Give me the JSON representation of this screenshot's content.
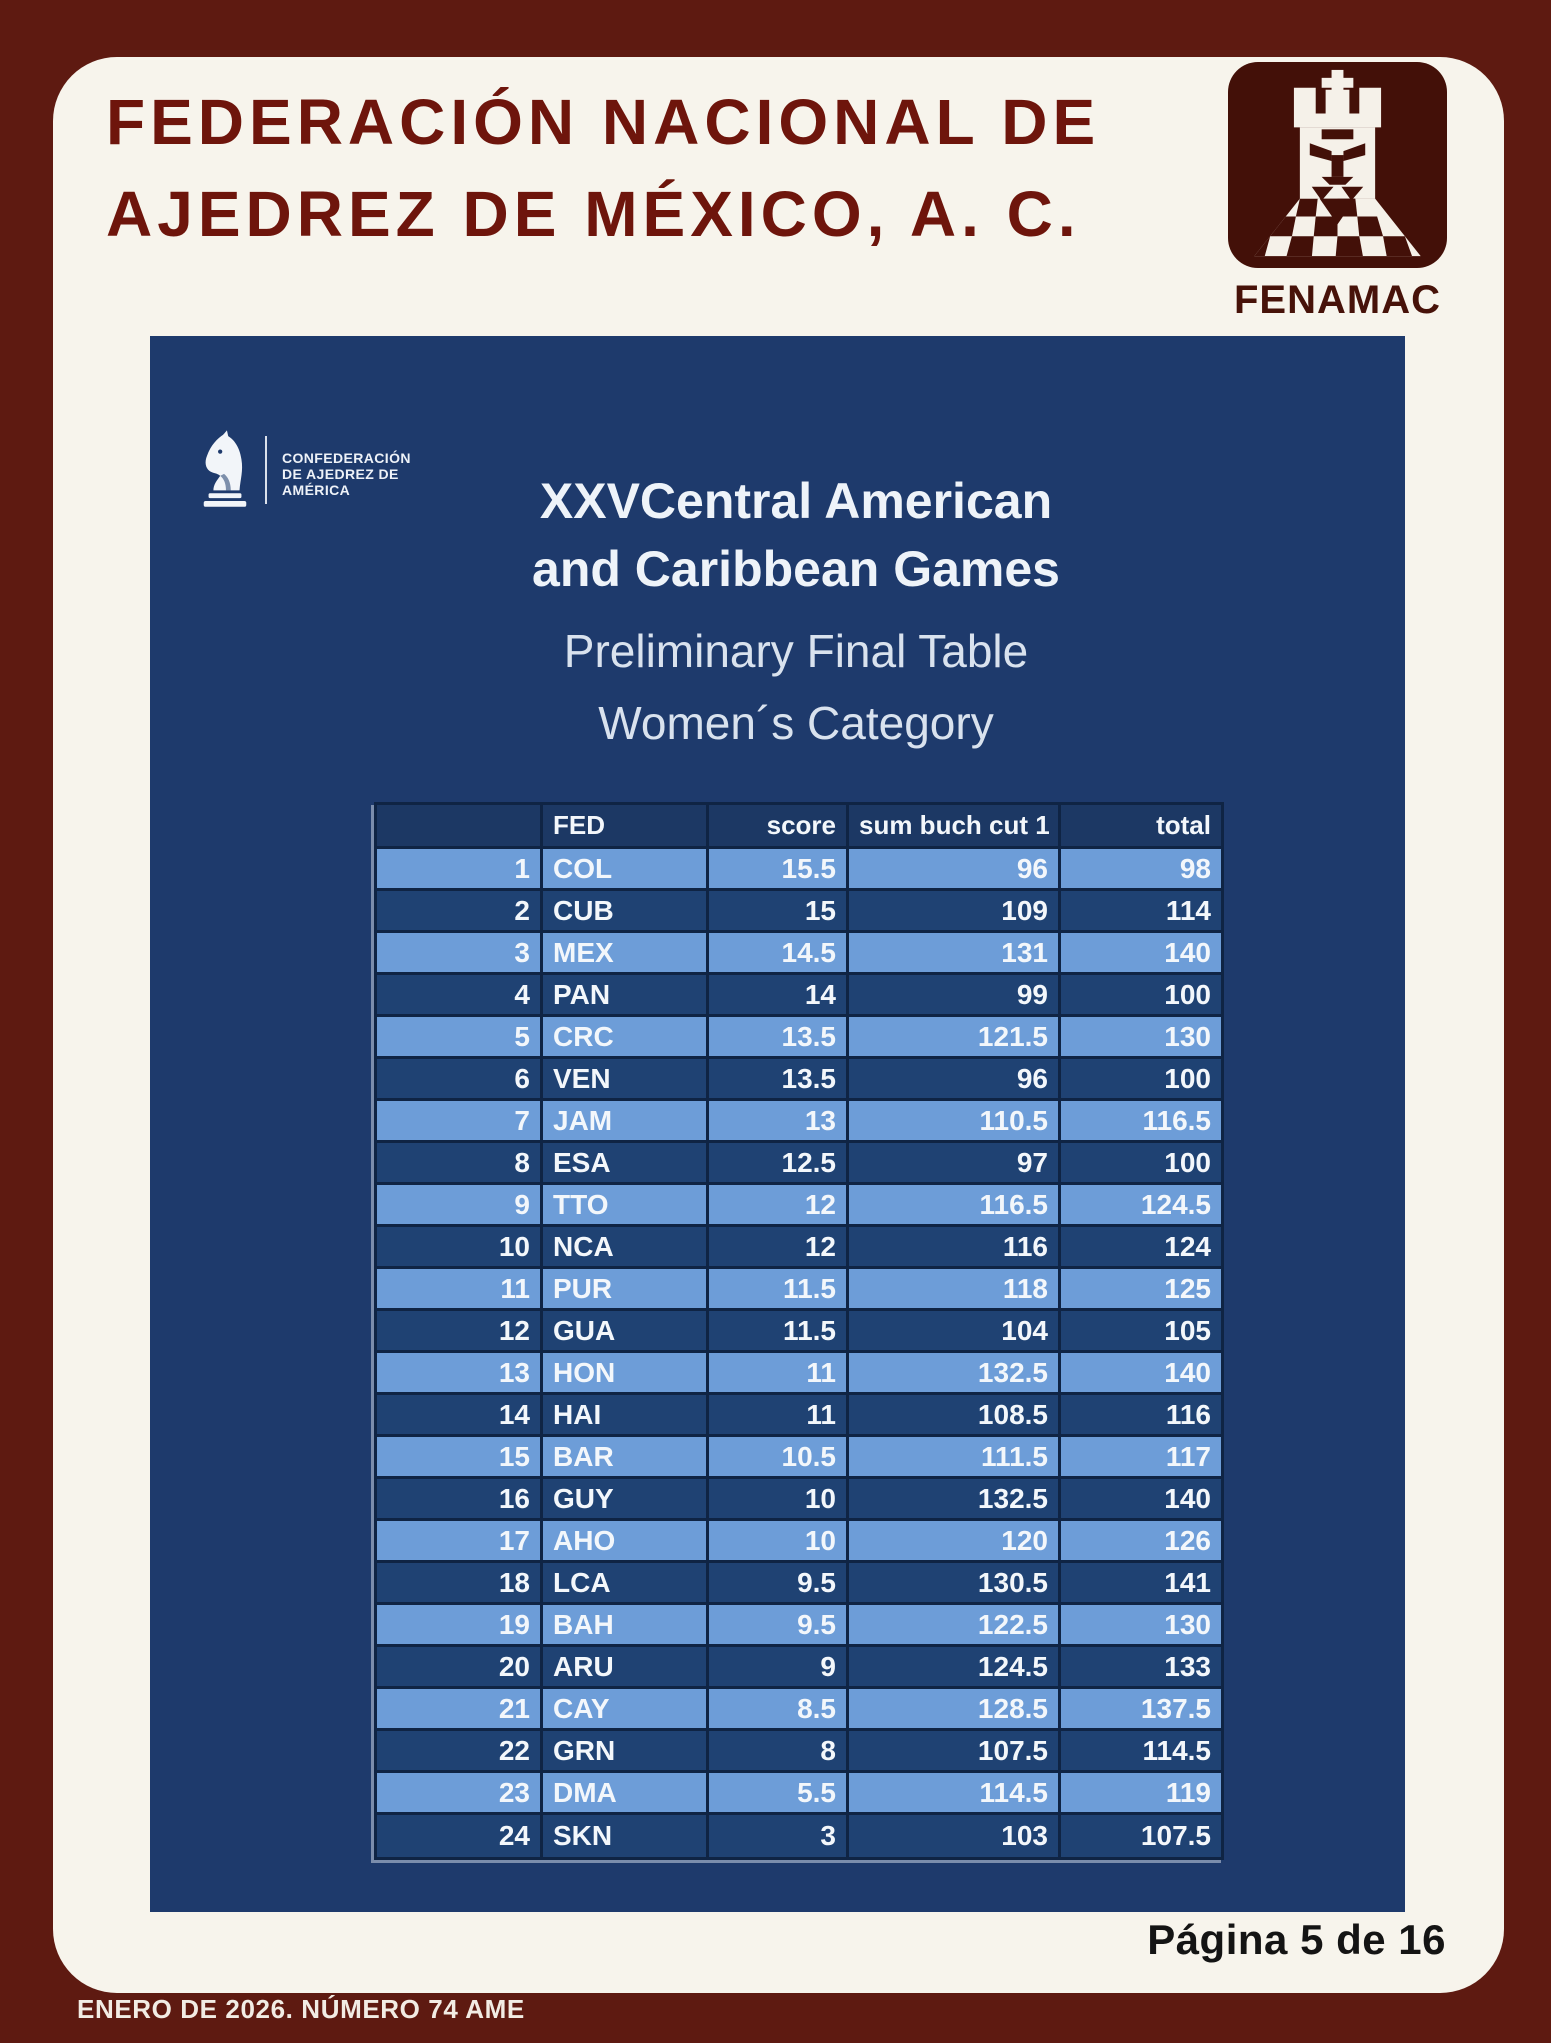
{
  "header": {
    "org_line1": "FEDERACIÓN NACIONAL DE",
    "org_line2": "AJEDREZ DE MÉXICO, A. C.",
    "logo_text": "FENAMAC"
  },
  "panel": {
    "confederation_line1": "CONFEDERACIÓN",
    "confederation_line2": "DE AJEDREZ DE",
    "confederation_line3": "AMÉRICA",
    "title_line1": "XXVCentral American",
    "title_line2": "and Caribbean Games",
    "subtitle1": "Preliminary Final Table",
    "subtitle2": "Women´s Category"
  },
  "table": {
    "columns": [
      "",
      "FED",
      "score",
      "sum buch cut 1",
      "total"
    ],
    "rows": [
      [
        "1",
        "COL",
        "15.5",
        "96",
        "98"
      ],
      [
        "2",
        "CUB",
        "15",
        "109",
        "114"
      ],
      [
        "3",
        "MEX",
        "14.5",
        "131",
        "140"
      ],
      [
        "4",
        "PAN",
        "14",
        "99",
        "100"
      ],
      [
        "5",
        "CRC",
        "13.5",
        "121.5",
        "130"
      ],
      [
        "6",
        "VEN",
        "13.5",
        "96",
        "100"
      ],
      [
        "7",
        "JAM",
        "13",
        "110.5",
        "116.5"
      ],
      [
        "8",
        "ESA",
        "12.5",
        "97",
        "100"
      ],
      [
        "9",
        "TTO",
        "12",
        "116.5",
        "124.5"
      ],
      [
        "10",
        "NCA",
        "12",
        "116",
        "124"
      ],
      [
        "11",
        "PUR",
        "11.5",
        "118",
        "125"
      ],
      [
        "12",
        "GUA",
        "11.5",
        "104",
        "105"
      ],
      [
        "13",
        "HON",
        "11",
        "132.5",
        "140"
      ],
      [
        "14",
        "HAI",
        "11",
        "108.5",
        "116"
      ],
      [
        "15",
        "BAR",
        "10.5",
        "111.5",
        "117"
      ],
      [
        "16",
        "GUY",
        "10",
        "132.5",
        "140"
      ],
      [
        "17",
        "AHO",
        "10",
        "120",
        "126"
      ],
      [
        "18",
        "LCA",
        "9.5",
        "130.5",
        "141"
      ],
      [
        "19",
        "BAH",
        "9.5",
        "122.5",
        "130"
      ],
      [
        "20",
        "ARU",
        "9",
        "124.5",
        "133"
      ],
      [
        "21",
        "CAY",
        "8.5",
        "128.5",
        "137.5"
      ],
      [
        "22",
        "GRN",
        "8",
        "107.5",
        "114.5"
      ],
      [
        "23",
        "DMA",
        "5.5",
        "114.5",
        "119"
      ],
      [
        "24",
        "SKN",
        "3",
        "103",
        "107.5"
      ]
    ]
  },
  "footer": {
    "page_indicator": "Página 5 de 16",
    "issue_line": "ENERO DE 2026. NÚMERO 74 AME"
  },
  "colors": {
    "border_red": "#5e1a11",
    "cream": "#f7f4ec",
    "maroon_text": "#6e150c",
    "logo_maroon": "#431008",
    "panel_navy": "#1e3a6c",
    "row_light": "#6d9dd8",
    "row_dark": "#1f4273",
    "header_row": "#1c3864",
    "grid_line": "#0f2444"
  }
}
